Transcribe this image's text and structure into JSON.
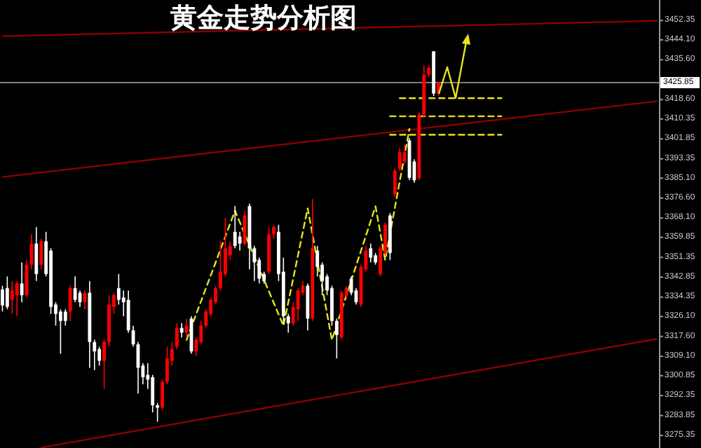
{
  "chart_data": {
    "type": "candlestick",
    "title": "黄金走势分析图",
    "categories": [
      null,
      null,
      null,
      null,
      null,
      null,
      null,
      null,
      null,
      null,
      null,
      null,
      null,
      null,
      null,
      null,
      null,
      null,
      null,
      null,
      null,
      null,
      null,
      null,
      null,
      null,
      null,
      null,
      null,
      null,
      null,
      null,
      null,
      null,
      null,
      null,
      null,
      null,
      null,
      null,
      null,
      null,
      null,
      null,
      null,
      null,
      null,
      null,
      null,
      null,
      null,
      null,
      null,
      null,
      null,
      null,
      null,
      null,
      null,
      null,
      null,
      null,
      null,
      null,
      null,
      null,
      null,
      null,
      null,
      null,
      null,
      null,
      null,
      null,
      null,
      null,
      null,
      null,
      null,
      null,
      null,
      null,
      null,
      null,
      null,
      null,
      null,
      null,
      null,
      null,
      null,
      null,
      null,
      null,
      null,
      null,
      null,
      null,
      null,
      null,
      null,
      null,
      null,
      null,
      null,
      null,
      null,
      null,
      null,
      null,
      null,
      null,
      null,
      null,
      null,
      null,
      null,
      null,
      null,
      null,
      null,
      null,
      null,
      null,
      null,
      null,
      null,
      null,
      null,
      null,
      null,
      null,
      null,
      null,
      null,
      null
    ],
    "ohlc": [
      [
        3337.6,
        3339.2,
        3328.2,
        3330.8
      ],
      [
        3338.2,
        3343.2,
        3329.2,
        3330.2
      ],
      [
        3333.2,
        3341.2,
        3327.2,
        3337.2
      ],
      [
        3335.2,
        3341.2,
        3326.2,
        3340.2
      ],
      [
        3340.2,
        3349.2,
        3332.2,
        3335.2
      ],
      [
        3335.2,
        3350.2,
        3334.2,
        3348.2
      ],
      [
        3348.2,
        3361.2,
        3346.2,
        3357.2
      ],
      [
        3357.2,
        3364.2,
        3341.2,
        3344.2
      ],
      [
        3348.2,
        3359.2,
        3346.2,
        3358.2
      ],
      [
        3358.2,
        3362.2,
        3343.2,
        3344.2
      ],
      [
        3354.2,
        3355.2,
        3327.2,
        3330.2
      ],
      [
        3331.2,
        3332.2,
        3322.2,
        3327.2
      ],
      [
        3328.2,
        3329.2,
        3310.2,
        3324.2
      ],
      [
        3328.2,
        3329.2,
        3322.2,
        3324.2
      ],
      [
        3328.2,
        3339.2,
        3324.2,
        3338.2
      ],
      [
        3338.2,
        3343.2,
        3332.2,
        3333.2
      ],
      [
        3336.2,
        3337.2,
        3330.2,
        3332.2
      ],
      [
        3332.2,
        3337.2,
        3329.2,
        3336.2
      ],
      [
        3336.2,
        3341.2,
        3304.2,
        3315.2
      ],
      [
        3315.2,
        3316.2,
        3303.2,
        3311.2
      ],
      [
        3312.2,
        3313.2,
        3305.2,
        3307.2
      ],
      [
        3307.2,
        3316.2,
        3295.2,
        3315.2
      ],
      [
        3315.2,
        3335.2,
        3313.2,
        3331.2
      ],
      [
        3330.2,
        3336.2,
        3327.2,
        3335.2
      ],
      [
        3338.2,
        3344.2,
        3331.2,
        3333.2
      ],
      [
        3334.2,
        3337.2,
        3326.2,
        3332.2
      ],
      [
        3333.2,
        3337.2,
        3319.2,
        3320.2
      ],
      [
        3320.2,
        3322.2,
        3313.2,
        3314.2
      ],
      [
        3314.2,
        3315.2,
        3293.2,
        3304.2
      ],
      [
        3305.2,
        3306.2,
        3297.2,
        3300.2
      ],
      [
        3301.2,
        3306.2,
        3295.2,
        3299.2
      ],
      [
        3300.2,
        3301.2,
        3285.2,
        3288.2
      ],
      [
        3288.2,
        3289.2,
        3281.2,
        3287.2
      ],
      [
        3287.2,
        3299.2,
        3286.2,
        3298.2
      ],
      [
        3298.2,
        3313.2,
        3297.2,
        3308.2
      ],
      [
        3307.2,
        3315.2,
        3305.2,
        3312.2
      ],
      [
        3313.2,
        3323.2,
        3312.2,
        3321.2
      ],
      [
        3321.2,
        3323.2,
        3317.2,
        3319.2
      ],
      [
        3319.2,
        3325.2,
        3317.2,
        3322.2
      ],
      [
        3325.2,
        3326.2,
        3310.2,
        3311.2
      ],
      [
        3311.2,
        3317.2,
        3309.2,
        3316.2
      ],
      [
        3315.2,
        3324.2,
        3314.2,
        3322.2
      ],
      [
        3322.2,
        3329.2,
        3321.2,
        3328.2
      ],
      [
        3327.2,
        3334.2,
        3326.2,
        3333.2
      ],
      [
        3332.2,
        3339.2,
        3331.2,
        3338.2
      ],
      [
        3338.2,
        3358.2,
        3337.2,
        3345.2
      ],
      [
        3344.2,
        3368.2,
        3343.2,
        3355.2
      ],
      [
        3352.2,
        3358.2,
        3350.2,
        3356.2
      ],
      [
        3362.2,
        3373.2,
        3355.2,
        3356.2
      ],
      [
        3360.2,
        3362.2,
        3354.2,
        3357.2
      ],
      [
        3357.2,
        3371.2,
        3356.2,
        3369.2
      ],
      [
        3373.2,
        3374.2,
        3346.2,
        3355.2
      ],
      [
        3355.2,
        3356.2,
        3341.2,
        3349.2
      ],
      [
        3350.2,
        3351.2,
        3340.2,
        3342.2
      ],
      [
        3344.2,
        3345.2,
        3340.2,
        3341.2
      ],
      [
        3345.2,
        3364.2,
        3344.2,
        3361.2
      ],
      [
        3361.2,
        3365.2,
        3359.2,
        3364.2
      ],
      [
        3362.2,
        3365.2,
        3341.2,
        3344.2
      ],
      [
        3345.2,
        3351.2,
        3323.2,
        3326.2
      ],
      [
        3326.2,
        3327.2,
        3319.2,
        3323.2
      ],
      [
        3323.2,
        3332.2,
        3322.2,
        3330.2
      ],
      [
        3329.2,
        3338.2,
        3324.2,
        3337.2
      ],
      [
        3336.2,
        3341.2,
        3335.2,
        3339.2
      ],
      [
        3339.2,
        3340.2,
        3320.2,
        3325.2
      ],
      [
        3325.2,
        3376.2,
        3324.2,
        3355.2
      ],
      [
        3354.2,
        3356.2,
        3343.2,
        3347.2
      ],
      [
        3348.2,
        3349.2,
        3335.2,
        3341.2
      ],
      [
        3343.2,
        3344.2,
        3335.2,
        3337.2
      ],
      [
        3338.2,
        3339.2,
        3322.2,
        3324.2
      ],
      [
        3324.2,
        3325.2,
        3308.2,
        3318.2
      ],
      [
        3317.2,
        3337.2,
        3316.2,
        3336.2
      ],
      [
        3335.2,
        3339.2,
        3334.2,
        3338.2
      ],
      [
        3342.2,
        3343.2,
        3335.2,
        3336.2
      ],
      [
        3337.2,
        3338.2,
        3331.2,
        3332.2
      ],
      [
        3331.2,
        3348.2,
        3330.2,
        3347.2
      ],
      [
        3346.2,
        3356.2,
        3345.2,
        3354.2
      ],
      [
        3355.2,
        3357.2,
        3349.2,
        3351.2
      ],
      [
        3352.2,
        3353.2,
        3348.2,
        3349.2
      ],
      [
        3344.2,
        3356.2,
        3343.2,
        3355.2
      ],
      [
        3353.2,
        3366.2,
        3352.2,
        3365.2
      ],
      [
        3369.2,
        3370.2,
        3350.2,
        3353.2
      ],
      [
        3378.2,
        3389.2,
        3377.2,
        3388.2
      ],
      [
        3389.2,
        3398.2,
        3388.2,
        3396.2
      ],
      [
        3392.2,
        3399.2,
        3391.2,
        3396.2
      ],
      [
        3401.2,
        3402.2,
        3384.2,
        3385.2
      ],
      [
        3392.2,
        3393.2,
        3383.2,
        3384.2
      ],
      [
        3385.2,
        3413.2,
        3384.2,
        3412.2
      ],
      [
        3412.2,
        3433.2,
        3411.2,
        3429.2
      ],
      [
        3429.2,
        3433.2,
        3428.2,
        3432.2
      ],
      [
        3439.2,
        3439.2,
        3420.2,
        3421.2
      ],
      [
        3421.2,
        3426.2,
        3420.2,
        3425.9
      ],
      null,
      null,
      null,
      null,
      null,
      null,
      null,
      null,
      null,
      null,
      null,
      null,
      null,
      null,
      null,
      null,
      null,
      null,
      null,
      null,
      null,
      null,
      null,
      null,
      null,
      null,
      null,
      null,
      null,
      null,
      null,
      null,
      null,
      null,
      null,
      null,
      null,
      null,
      null,
      null,
      null,
      null,
      null,
      null,
      null
    ],
    "colors": [
      "#ffffff",
      "#ffffff",
      "#ff0000",
      "#ff0000",
      "#ffffff",
      "#ff0000",
      "#ff0000",
      "#ffffff",
      "#ff0000",
      "#ffffff",
      "#ffffff",
      "#ffffff",
      "#ffffff",
      "#ffffff",
      "#ff0000",
      "#ffffff",
      "#ffffff",
      "#ff0000",
      "#ffffff",
      "#ffffff",
      "#ffffff",
      "#ff0000",
      "#ff0000",
      "#ff0000",
      "#ffffff",
      "#ffffff",
      "#ffffff",
      "#ffffff",
      "#ffffff",
      "#ffffff",
      "#ffffff",
      "#ffffff",
      "#ffffff",
      "#ff0000",
      "#ff0000",
      "#ff0000",
      "#ff0000",
      "#ffffff",
      "#ff0000",
      "#ffffff",
      "#ff0000",
      "#ff0000",
      "#ff0000",
      "#ff0000",
      "#ff0000",
      "#ff0000",
      "#ff0000",
      "#ff0000",
      "#ffffff",
      "#ffffff",
      "#ff0000",
      "#ffffff",
      "#ffffff",
      "#ffffff",
      "#ffffff",
      "#ff0000",
      "#ff0000",
      "#ffffff",
      "#ffffff",
      "#ffffff",
      "#ff0000",
      "#ff0000",
      "#ff0000",
      "#ffffff",
      "#ff0000",
      "#ffffff",
      "#ffffff",
      "#ffffff",
      "#ffffff",
      "#ffffff",
      "#ff0000",
      "#ff0000",
      "#ffffff",
      "#ffffff",
      "#ff0000",
      "#ff0000",
      "#ffffff",
      "#ffffff",
      "#ff0000",
      "#ff0000",
      "#ffffff",
      "#ff0000",
      "#ff0000",
      "#ff0000",
      "#ffffff",
      "#ffffff",
      "#ff0000",
      "#ff0000",
      "#ff0000",
      "#ffffff",
      "#ff0000",
      null,
      null,
      null,
      null,
      null,
      null,
      null,
      null,
      null,
      null,
      null,
      null,
      null,
      null,
      null,
      null,
      null,
      null,
      null,
      null,
      null,
      null,
      null,
      null,
      null,
      null,
      null,
      null,
      null,
      null,
      null,
      null,
      null,
      null,
      null,
      null,
      null,
      null,
      null,
      null,
      null,
      null,
      null,
      null,
      null
    ],
    "series": [
      {
        "type": "line",
        "color": "#8b0000",
        "line_style": "solid",
        "values": [
          3445.7,
          null,
          null,
          null,
          null,
          null,
          null,
          null,
          null,
          null,
          null,
          null,
          null,
          null,
          null,
          null,
          null,
          null,
          null,
          null,
          null,
          null,
          null,
          null,
          null,
          null,
          null,
          null,
          null,
          null,
          null,
          null,
          null,
          null,
          null,
          null,
          null,
          null,
          null,
          null,
          null,
          null,
          null,
          null,
          null,
          null,
          null,
          null,
          null,
          null,
          null,
          null,
          null,
          null,
          null,
          null,
          null,
          null,
          null,
          null,
          null,
          null,
          null,
          null,
          null,
          null,
          null,
          null,
          null,
          null,
          null,
          null,
          null,
          null,
          null,
          null,
          null,
          null,
          null,
          null,
          null,
          null,
          null,
          null,
          null,
          null,
          null,
          null,
          null,
          null,
          null,
          null,
          null,
          null,
          null,
          null,
          null,
          null,
          null,
          null,
          null,
          null,
          null,
          null,
          null,
          null,
          null,
          null,
          null,
          null,
          null,
          null,
          null,
          null,
          null,
          null,
          null,
          null,
          null,
          null,
          null,
          null,
          null,
          null,
          null,
          null,
          null,
          null,
          null,
          null,
          null,
          null,
          null,
          null,
          null,
          3452.2
        ]
      },
      {
        "type": "line",
        "color": "#8b0000",
        "line_style": "solid",
        "values": [
          3385.6,
          null,
          null,
          null,
          null,
          null,
          null,
          null,
          null,
          null,
          null,
          null,
          null,
          null,
          null,
          null,
          null,
          null,
          null,
          null,
          null,
          null,
          null,
          null,
          null,
          null,
          null,
          null,
          null,
          null,
          null,
          null,
          null,
          null,
          null,
          null,
          null,
          null,
          null,
          null,
          null,
          null,
          null,
          null,
          null,
          null,
          null,
          null,
          null,
          null,
          null,
          null,
          null,
          null,
          null,
          null,
          null,
          null,
          null,
          null,
          null,
          null,
          null,
          null,
          null,
          null,
          null,
          null,
          null,
          null,
          null,
          null,
          null,
          null,
          null,
          null,
          null,
          null,
          null,
          null,
          null,
          null,
          null,
          null,
          null,
          null,
          null,
          null,
          null,
          null,
          null,
          null,
          null,
          null,
          null,
          null,
          null,
          null,
          null,
          null,
          null,
          null,
          null,
          null,
          null,
          null,
          null,
          null,
          null,
          null,
          null,
          null,
          null,
          null,
          null,
          null,
          null,
          null,
          null,
          null,
          null,
          null,
          null,
          null,
          null,
          null,
          null,
          null,
          null,
          null,
          null,
          null,
          null,
          null,
          null,
          3417.9
        ]
      },
      {
        "type": "line",
        "color": "#8b0000",
        "line_style": "solid",
        "values": [
          null,
          null,
          null,
          null,
          null,
          null,
          null,
          null,
          3270.2,
          null,
          null,
          null,
          null,
          null,
          null,
          null,
          null,
          null,
          null,
          null,
          null,
          null,
          null,
          null,
          null,
          null,
          null,
          null,
          null,
          null,
          null,
          null,
          null,
          null,
          null,
          null,
          null,
          null,
          null,
          null,
          null,
          null,
          null,
          null,
          null,
          null,
          null,
          null,
          null,
          null,
          null,
          null,
          null,
          null,
          null,
          null,
          null,
          null,
          null,
          null,
          null,
          null,
          null,
          null,
          null,
          null,
          null,
          null,
          null,
          null,
          null,
          null,
          null,
          null,
          null,
          null,
          null,
          null,
          null,
          null,
          null,
          null,
          null,
          null,
          null,
          null,
          null,
          null,
          null,
          null,
          null,
          null,
          null,
          null,
          null,
          null,
          null,
          null,
          null,
          null,
          null,
          null,
          null,
          null,
          null,
          null,
          null,
          null,
          null,
          null,
          null,
          null,
          null,
          null,
          null,
          null,
          null,
          null,
          null,
          null,
          null,
          null,
          null,
          null,
          null,
          null,
          null,
          null,
          null,
          null,
          null,
          null,
          null,
          null,
          null,
          3316.5
        ]
      },
      {
        "type": "line",
        "color": "#e6e619",
        "line_style": "dashed",
        "values": [
          null,
          null,
          null,
          null,
          null,
          null,
          null,
          null,
          null,
          null,
          null,
          null,
          null,
          null,
          null,
          null,
          null,
          null,
          null,
          null,
          null,
          null,
          null,
          null,
          null,
          null,
          null,
          null,
          null,
          null,
          null,
          null,
          null,
          null,
          null,
          null,
          null,
          null,
          3316.1,
          null,
          null,
          null,
          null,
          null,
          null,
          null,
          null,
          null,
          3371.2,
          null,
          null,
          null,
          null,
          null,
          null,
          null,
          null,
          null,
          3322.1,
          null,
          null,
          null,
          null,
          3372.2,
          null,
          null,
          null,
          null,
          3316.1,
          null,
          null,
          null,
          null,
          null,
          null,
          null,
          null,
          3373.1,
          null,
          3350.2,
          null,
          null,
          null,
          null,
          3406.1,
          null,
          null,
          null,
          null,
          null,
          null,
          null,
          null,
          null,
          null,
          null,
          null,
          null,
          null,
          null,
          null,
          null,
          null,
          null,
          null,
          null,
          null,
          null,
          null,
          null,
          null,
          null,
          null,
          null,
          null,
          null,
          null,
          null,
          null,
          null,
          null,
          null,
          null,
          null,
          null,
          null,
          null,
          null,
          null,
          null,
          null,
          null,
          null,
          null,
          null,
          null
        ]
      },
      {
        "type": "line",
        "color": "#e6e619",
        "line_style": "dashed",
        "values": [
          null,
          null,
          null,
          null,
          null,
          null,
          null,
          null,
          null,
          null,
          null,
          null,
          null,
          null,
          null,
          null,
          null,
          null,
          null,
          null,
          null,
          null,
          null,
          null,
          null,
          null,
          null,
          null,
          null,
          null,
          null,
          null,
          null,
          null,
          null,
          null,
          null,
          null,
          null,
          null,
          null,
          null,
          null,
          null,
          null,
          null,
          null,
          null,
          null,
          null,
          null,
          null,
          null,
          null,
          null,
          null,
          null,
          null,
          null,
          null,
          null,
          null,
          null,
          null,
          null,
          null,
          null,
          null,
          null,
          null,
          null,
          null,
          null,
          null,
          null,
          null,
          null,
          null,
          null,
          null,
          null,
          null,
          3419.2,
          null,
          null,
          null,
          null,
          null,
          null,
          null,
          null,
          null,
          null,
          null,
          null,
          null,
          null,
          null,
          null,
          null,
          null,
          null,
          null,
          3419.2,
          null,
          null,
          null,
          null,
          null,
          null,
          null,
          null,
          null,
          null,
          null,
          null,
          null,
          null,
          null,
          null,
          null,
          null,
          null,
          null,
          null,
          null,
          null,
          null,
          null,
          null,
          null,
          null,
          null,
          null,
          null,
          null
        ]
      },
      {
        "type": "line",
        "color": "#e6e619",
        "line_style": "dashed",
        "values": [
          null,
          null,
          null,
          null,
          null,
          null,
          null,
          null,
          null,
          null,
          null,
          null,
          null,
          null,
          null,
          null,
          null,
          null,
          null,
          null,
          null,
          null,
          null,
          null,
          null,
          null,
          null,
          null,
          null,
          null,
          null,
          null,
          null,
          null,
          null,
          null,
          null,
          null,
          null,
          null,
          null,
          null,
          null,
          null,
          null,
          null,
          null,
          null,
          null,
          null,
          null,
          null,
          null,
          null,
          null,
          null,
          null,
          null,
          null,
          null,
          null,
          null,
          null,
          null,
          null,
          null,
          null,
          null,
          null,
          null,
          null,
          null,
          null,
          null,
          null,
          null,
          null,
          null,
          null,
          null,
          3411.5,
          null,
          null,
          null,
          null,
          null,
          null,
          null,
          null,
          null,
          null,
          null,
          null,
          null,
          null,
          null,
          null,
          null,
          null,
          null,
          null,
          null,
          null,
          3411.5,
          null,
          null,
          null,
          null,
          null,
          null,
          null,
          null,
          null,
          null,
          null,
          null,
          null,
          null,
          null,
          null,
          null,
          null,
          null,
          null,
          null,
          null,
          null,
          null,
          null,
          null,
          null,
          null,
          null,
          null,
          null,
          null
        ]
      },
      {
        "type": "line",
        "color": "#e6e619",
        "line_style": "dashed",
        "values": [
          null,
          null,
          null,
          null,
          null,
          null,
          null,
          null,
          null,
          null,
          null,
          null,
          null,
          null,
          null,
          null,
          null,
          null,
          null,
          null,
          null,
          null,
          null,
          null,
          null,
          null,
          null,
          null,
          null,
          null,
          null,
          null,
          null,
          null,
          null,
          null,
          null,
          null,
          null,
          null,
          null,
          null,
          null,
          null,
          null,
          null,
          null,
          null,
          null,
          null,
          null,
          null,
          null,
          null,
          null,
          null,
          null,
          null,
          null,
          null,
          null,
          null,
          null,
          null,
          null,
          null,
          null,
          null,
          null,
          null,
          null,
          null,
          null,
          null,
          null,
          null,
          null,
          null,
          null,
          null,
          3403.6,
          null,
          null,
          null,
          null,
          null,
          null,
          null,
          null,
          null,
          null,
          null,
          null,
          null,
          null,
          null,
          null,
          null,
          null,
          null,
          null,
          null,
          null,
          3403.6,
          null,
          null,
          null,
          null,
          null,
          null,
          null,
          null,
          null,
          null,
          null,
          null,
          null,
          null,
          null,
          null,
          null,
          null,
          null,
          null,
          null,
          null,
          null,
          null,
          null,
          null,
          null,
          null,
          null,
          null,
          null,
          null
        ]
      }
    ],
    "ref_lines": [
      {
        "axis": "y",
        "value": 3425.85,
        "label": "3425.85",
        "color": "#7f7f7f"
      }
    ],
    "ylim": [
      3270.0,
      3461.1
    ],
    "yticks": [
      3452.35,
      {
        "value": 3444.1,
        "label": "3444.10"
      },
      {
        "value": 3435.6,
        "label": "3435.60"
      },
      {
        "value": 3418.6,
        "label": "3418.60"
      },
      3410.35,
      3401.85,
      3393.35,
      {
        "value": 3385.1,
        "label": "3385.10"
      },
      {
        "value": 3376.6,
        "label": "3376.60"
      },
      {
        "value": 3368.1,
        "label": "3368.10"
      },
      3359.85,
      3351.35,
      3342.85,
      3334.35,
      {
        "value": 3326.1,
        "label": "3326.10"
      },
      {
        "value": 3317.6,
        "label": "3317.60"
      },
      {
        "value": 3309.1,
        "label": "3309.10"
      },
      3300.85,
      3292.35,
      3283.85,
      3275.35
    ],
    "tick_labels": "y",
    "grid": false
  }
}
